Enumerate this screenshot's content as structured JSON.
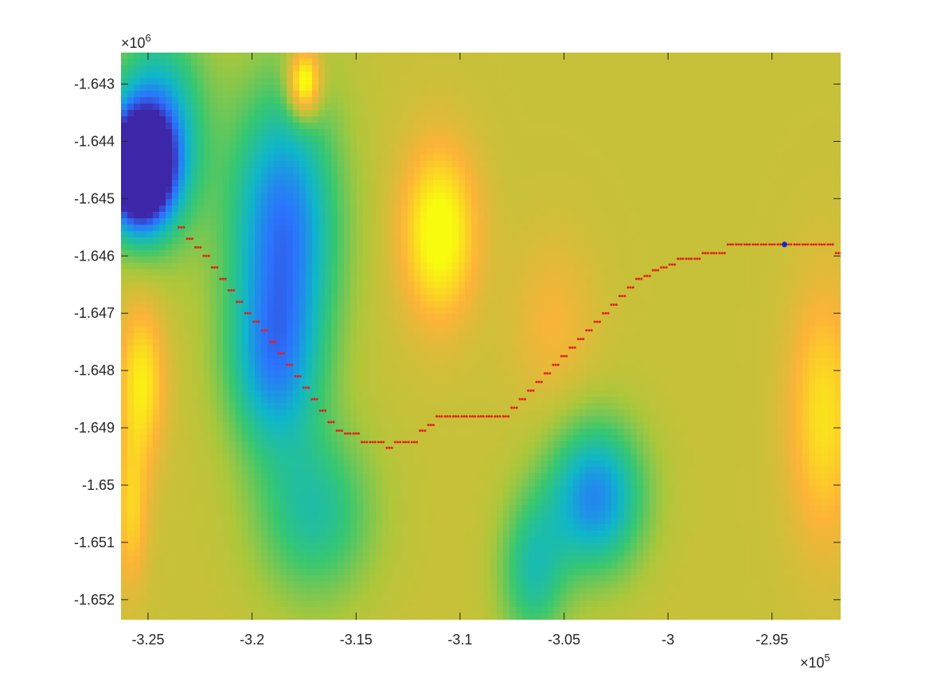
{
  "chart_data": {
    "type": "heatmap",
    "title": "",
    "xlabel": "",
    "ylabel": "",
    "xlim": [
      -326300,
      -291700
    ],
    "ylim": [
      -1652350,
      -1642450
    ],
    "x_scale_factor": {
      "base": "×10",
      "exp": "5"
    },
    "y_scale_factor": {
      "base": "×10",
      "exp": "6"
    },
    "x_ticks": [
      {
        "value": -325000,
        "label": "-3.25"
      },
      {
        "value": -320000,
        "label": "-3.2"
      },
      {
        "value": -315000,
        "label": "-3.15"
      },
      {
        "value": -310000,
        "label": "-3.1"
      },
      {
        "value": -305000,
        "label": "-3.05"
      },
      {
        "value": -300000,
        "label": "-3"
      },
      {
        "value": -295000,
        "label": "-2.95"
      }
    ],
    "y_ticks": [
      {
        "value": -1643000,
        "label": "-1.643"
      },
      {
        "value": -1644000,
        "label": "-1.644"
      },
      {
        "value": -1645000,
        "label": "-1.645"
      },
      {
        "value": -1646000,
        "label": "-1.646"
      },
      {
        "value": -1647000,
        "label": "-1.647"
      },
      {
        "value": -1648000,
        "label": "-1.648"
      },
      {
        "value": -1649000,
        "label": "-1.649"
      },
      {
        "value": -1650000,
        "label": "-1.65"
      },
      {
        "value": -1651000,
        "label": "-1.651"
      },
      {
        "value": -1652000,
        "label": "-1.652"
      }
    ],
    "colormap": [
      "#3e26a8",
      "#2b73fe",
      "#0fb6ca",
      "#37c770",
      "#aec73a",
      "#fdb338",
      "#f9fb0e"
    ],
    "field_features": [
      {
        "x": -325500,
        "y": -1644500,
        "sx": 1600,
        "sy": 1000,
        "amp": -1.05
      },
      {
        "x": -324500,
        "y": -1643800,
        "sx": 2200,
        "sy": 1800,
        "amp": -0.45
      },
      {
        "x": -318500,
        "y": -1645500,
        "sx": 2600,
        "sy": 2400,
        "amp": -0.55
      },
      {
        "x": -319000,
        "y": -1648000,
        "sx": 2200,
        "sy": 1500,
        "amp": -0.35
      },
      {
        "x": -317000,
        "y": -1650500,
        "sx": 2800,
        "sy": 1500,
        "amp": -0.3
      },
      {
        "x": -303500,
        "y": -1650200,
        "sx": 2300,
        "sy": 1300,
        "amp": -0.5
      },
      {
        "x": -306500,
        "y": -1651500,
        "sx": 1600,
        "sy": 1300,
        "amp": -0.3
      },
      {
        "x": -311000,
        "y": -1645600,
        "sx": 1800,
        "sy": 1500,
        "amp": 0.32
      },
      {
        "x": -325300,
        "y": -1648200,
        "sx": 1100,
        "sy": 1400,
        "amp": 0.25
      },
      {
        "x": -325800,
        "y": -1650500,
        "sx": 800,
        "sy": 1300,
        "amp": 0.18
      },
      {
        "x": -292500,
        "y": -1648800,
        "sx": 1700,
        "sy": 2200,
        "amp": 0.22
      },
      {
        "x": -305500,
        "y": -1647200,
        "sx": 2000,
        "sy": 1500,
        "amp": 0.1
      },
      {
        "x": -317500,
        "y": -1643000,
        "sx": 800,
        "sy": 600,
        "amp": 0.45
      }
    ],
    "field_base": 0.72,
    "series": [
      {
        "marker": "point",
        "color": "#e3201b",
        "x": [
          -323400,
          -323000,
          -322600,
          -322200,
          -321800,
          -321400,
          -321000,
          -320600,
          -320200,
          -319800,
          -319400,
          -319000,
          -318600,
          -318200,
          -317800,
          -317400,
          -317000,
          -316600,
          -316200,
          -315800,
          -315400,
          -315000,
          -314600,
          -314200,
          -313800,
          -313400,
          -313000,
          -312600,
          -312200,
          -311800,
          -311400,
          -311000,
          -310600,
          -310200,
          -309800,
          -309400,
          -309000,
          -308600,
          -308200,
          -307800,
          -307400,
          -307000,
          -306600,
          -306200,
          -305800,
          -305400,
          -305000,
          -304600,
          -304200,
          -303800,
          -303400,
          -303000,
          -302600,
          -302200,
          -301800,
          -301400,
          -301000,
          -300600,
          -300200,
          -299800,
          -299400,
          -299000,
          -298600,
          -298200,
          -297800,
          -297400,
          -297000,
          -296600,
          -296200,
          -295800,
          -295400,
          -295000,
          -294600,
          -294200,
          -293800,
          -293400,
          -293000,
          -292600,
          -292200,
          -291800
        ],
        "y": [
          -1645500,
          -1645700,
          -1645850,
          -1646000,
          -1646200,
          -1646400,
          -1646600,
          -1646800,
          -1647000,
          -1647150,
          -1647300,
          -1647500,
          -1647700,
          -1647900,
          -1648100,
          -1648300,
          -1648500,
          -1648700,
          -1648900,
          -1649050,
          -1649100,
          -1649100,
          -1649250,
          -1649250,
          -1649250,
          -1649350,
          -1649250,
          -1649250,
          -1649250,
          -1649050,
          -1648950,
          -1648800,
          -1648800,
          -1648800,
          -1648800,
          -1648800,
          -1648800,
          -1648800,
          -1648800,
          -1648800,
          -1648650,
          -1648500,
          -1648350,
          -1648200,
          -1648050,
          -1647900,
          -1647750,
          -1647600,
          -1647450,
          -1647300,
          -1647150,
          -1647000,
          -1646850,
          -1646700,
          -1646550,
          -1646400,
          -1646350,
          -1646250,
          -1646200,
          -1646150,
          -1646050,
          -1646050,
          -1646050,
          -1645950,
          -1645950,
          -1645950,
          -1645800,
          -1645800,
          -1645800,
          -1645800,
          -1645800,
          -1645800,
          -1645800,
          -1645800,
          -1645800,
          -1645800,
          -1645800,
          -1645800,
          -1645800,
          -1645950
        ]
      },
      {
        "marker": "dot",
        "color": "#1f22d6",
        "x": [
          -294400
        ],
        "y": [
          -1645800
        ]
      }
    ]
  }
}
